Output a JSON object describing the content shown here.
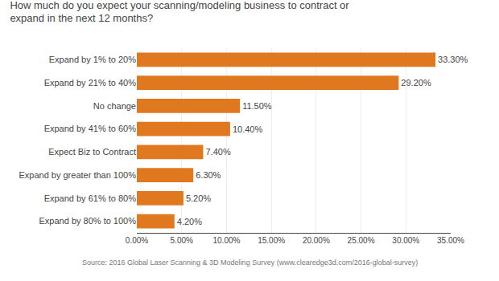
{
  "chart_data": {
    "type": "bar",
    "orientation": "horizontal",
    "title": "How much do you expect your scanning/modeling business to contract or expand in the next 12 months?",
    "categories": [
      "Expand by 80% to 100%",
      "Expand by 61% to 80%",
      "Expand by greater than 100%",
      "Expect Biz to Contract",
      "Expand by 41% to 60%",
      "No change",
      "Expand by 21% to 40%",
      "Expand by 1% to 20%"
    ],
    "values": [
      4.2,
      5.2,
      6.3,
      7.4,
      10.4,
      11.5,
      29.2,
      33.3
    ],
    "value_labels": [
      "4.20%",
      "5.20%",
      "6.30%",
      "7.40%",
      "10.40%",
      "11.50%",
      "29.20%",
      "33.30%"
    ],
    "data_labels": true,
    "color": "#E07820",
    "xlim": [
      0,
      35
    ],
    "xticks": [
      {
        "value": 0,
        "label": "0.00%"
      },
      {
        "value": 5,
        "label": "5.00%"
      },
      {
        "value": 10,
        "label": "10.00%"
      },
      {
        "value": 15,
        "label": "15.00%"
      },
      {
        "value": 20,
        "label": "20.00%"
      },
      {
        "value": 25,
        "label": "25.00%"
      },
      {
        "value": 30,
        "label": "30.00%"
      },
      {
        "value": 35,
        "label": "35.00%"
      }
    ],
    "grid": true,
    "annotations": [
      "Source: 2016 Global Laser Scanning & 3D Modeling Survey (www.clearedge3d.com/2016-global-survey)"
    ]
  }
}
